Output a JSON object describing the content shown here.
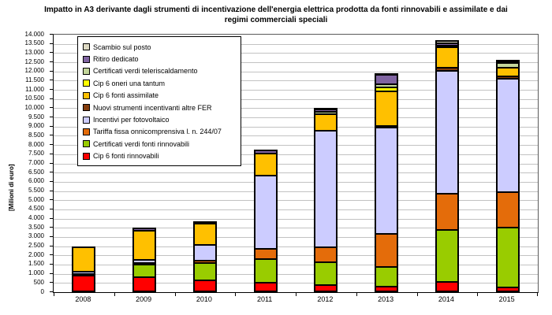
{
  "chart_data": {
    "type": "bar",
    "stacked": true,
    "title": "Impatto in A3 derivante dagli strumenti di incentivazione dell'energia elettrica prodotta da fonti rinnovabili e assimilate e dai regimi commerciali speciali",
    "ylabel": "[Milioni di euro]",
    "ylim": [
      0,
      14000
    ],
    "ytick_step": 500,
    "grid": true,
    "legend_position": "top-left-inside",
    "categories": [
      "2008",
      "2009",
      "2010",
      "2011",
      "2012",
      "2013",
      "2014",
      "2015"
    ],
    "series": [
      {
        "name": "Cip 6 fonti rinnovabili",
        "color": "#FF0000",
        "values": [
          900,
          830,
          650,
          530,
          400,
          300,
          550,
          250
        ]
      },
      {
        "name": "Certificati verdi fonti rinnovabili",
        "color": "#99CC00",
        "values": [
          0,
          680,
          920,
          1290,
          1240,
          1050,
          2850,
          3250
        ]
      },
      {
        "name": "Tariffa fissa onnicomprensiva l. n. 244/07",
        "color": "#E46C0A",
        "values": [
          80,
          90,
          140,
          550,
          790,
          1800,
          1950,
          1950
        ]
      },
      {
        "name": "Incentivi per fotovoltaico",
        "color": "#CCCCFF",
        "values": [
          140,
          160,
          880,
          3950,
          6330,
          5800,
          6700,
          6150
        ]
      },
      {
        "name": "Nuovi strumenti incentivanti altre FER",
        "color": "#843C0C",
        "values": [
          0,
          0,
          0,
          0,
          0,
          100,
          150,
          150
        ]
      },
      {
        "name": "Cip 6 fonti assimilate",
        "color": "#FFC000",
        "values": [
          1360,
          1600,
          1130,
          1230,
          910,
          1850,
          1100,
          450
        ]
      },
      {
        "name": "Cip 6 oneri una tantum",
        "color": "#FFFF00",
        "values": [
          0,
          0,
          0,
          0,
          0,
          250,
          0,
          0
        ]
      },
      {
        "name": "Certificati verdi teleriscaldamento",
        "color": "#C4D79B",
        "values": [
          0,
          0,
          0,
          0,
          140,
          150,
          100,
          250
        ]
      },
      {
        "name": "Ritiro dedicato",
        "color": "#8064A2",
        "values": [
          0,
          130,
          130,
          200,
          110,
          500,
          150,
          100
        ]
      },
      {
        "name": "Scambio sul posto",
        "color": "#DDD9C3",
        "values": [
          0,
          0,
          0,
          0,
          110,
          100,
          150,
          100
        ]
      }
    ],
    "legend_order_top_to_bottom": [
      "Scambio sul posto",
      "Ritiro dedicato",
      "Certificati verdi teleriscaldamento",
      "Cip 6 oneri una tantum",
      "Cip 6 fonti assimilate",
      "Nuovi strumenti incentivanti altre FER",
      "Incentivi per fotovoltaico",
      "Tariffa fissa onnicomprensiva l. n. 244/07",
      "Certificati verdi fonti rinnovabili",
      "Cip 6 fonti rinnovabili"
    ]
  }
}
